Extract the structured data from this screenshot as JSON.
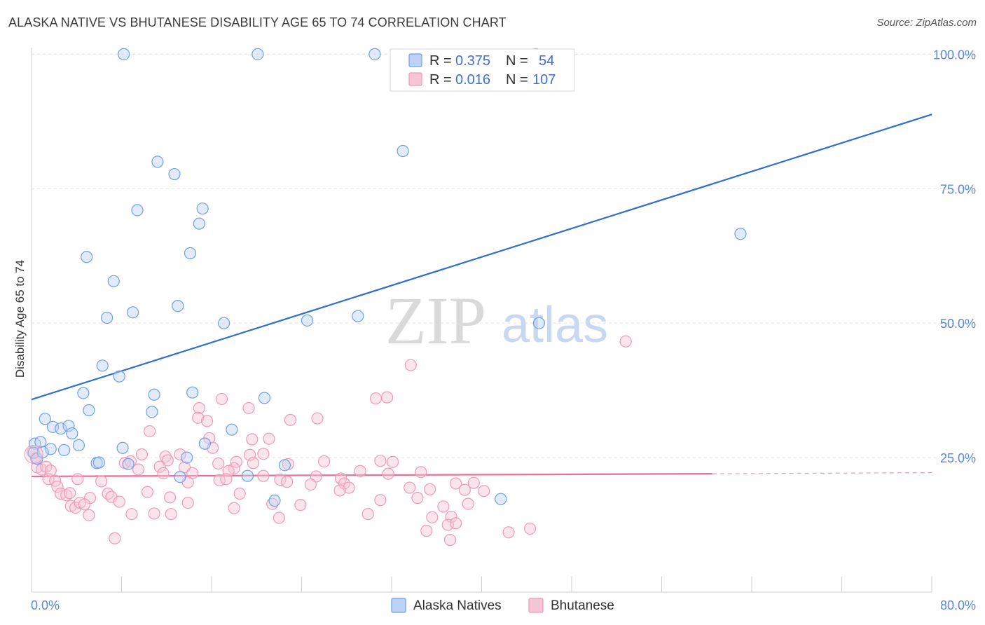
{
  "title": "ALASKA NATIVE VS BHUTANESE DISABILITY AGE 65 TO 74 CORRELATION CHART",
  "source": "Source: ZipAtlas.com",
  "colors": {
    "blue": "#6f9fe8",
    "blue_fill": "#bcd3f5",
    "blue_line": "#2e6fd0",
    "pink": "#ee9ab5",
    "pink_fill": "#f7c6d6",
    "pink_line": "#e8709a",
    "tick_text": "#5b86d6",
    "grid": "#e2e2e2"
  },
  "legend": {
    "r_label": "R =",
    "n_label": "N =",
    "series": [
      {
        "r": "0.375",
        "n": "54"
      },
      {
        "r": "0.016",
        "n": "107"
      }
    ]
  },
  "watermark": {
    "zip": "ZIP",
    "atlas": "atlas"
  },
  "chart_data": {
    "type": "scatter",
    "title": "ALASKA NATIVE VS BHUTANESE DISABILITY AGE 65 TO 74 CORRELATION CHART",
    "xlabel": "",
    "ylabel": "Disability Age 65 to 74",
    "xlim": [
      0,
      80
    ],
    "ylim": [
      0,
      102
    ],
    "x_tick_labels": [
      "0.0%",
      "80.0%"
    ],
    "y_ticks": [
      25,
      50,
      75,
      100
    ],
    "y_tick_labels": [
      "25.0%",
      "50.0%",
      "75.0%",
      "100.0%"
    ],
    "grid": true,
    "legend_position": "top-center",
    "series": [
      {
        "name": "Alaska Natives",
        "color": "#6f9fe8",
        "trend": {
          "x": [
            0,
            80
          ],
          "y": [
            35.8,
            88.8
          ]
        },
        "points": [
          [
            8.2,
            100
          ],
          [
            20.1,
            100
          ],
          [
            30.5,
            100
          ],
          [
            44.8,
            100
          ],
          [
            33.0,
            82.0
          ],
          [
            11.2,
            80.0
          ],
          [
            12.7,
            77.7
          ],
          [
            9.4,
            71.0
          ],
          [
            15.2,
            71.3
          ],
          [
            14.9,
            68.5
          ],
          [
            14.1,
            63.0
          ],
          [
            4.9,
            62.3
          ],
          [
            7.3,
            57.8
          ],
          [
            9.0,
            52.0
          ],
          [
            13.0,
            53.2
          ],
          [
            6.7,
            51.0
          ],
          [
            17.1,
            50.0
          ],
          [
            24.5,
            50.5
          ],
          [
            29.0,
            51.3
          ],
          [
            45.1,
            50.0
          ],
          [
            63.0,
            66.6
          ],
          [
            6.3,
            42.1
          ],
          [
            7.8,
            40.1
          ],
          [
            4.6,
            37.0
          ],
          [
            10.9,
            36.7
          ],
          [
            14.3,
            37.1
          ],
          [
            20.7,
            36.1
          ],
          [
            5.1,
            33.8
          ],
          [
            10.7,
            33.5
          ],
          [
            1.2,
            32.2
          ],
          [
            1.9,
            30.7
          ],
          [
            2.6,
            30.4
          ],
          [
            3.3,
            30.9
          ],
          [
            3.6,
            29.5
          ],
          [
            17.8,
            30.2
          ],
          [
            0.3,
            27.6
          ],
          [
            0.8,
            27.9
          ],
          [
            1.7,
            26.6
          ],
          [
            2.9,
            26.4
          ],
          [
            4.2,
            27.3
          ],
          [
            8.1,
            26.8
          ],
          [
            15.4,
            27.6
          ],
          [
            5.8,
            24.0
          ],
          [
            6.0,
            24.1
          ],
          [
            8.6,
            23.8
          ],
          [
            13.8,
            25.0
          ],
          [
            13.2,
            21.4
          ],
          [
            19.2,
            21.6
          ],
          [
            22.5,
            23.6
          ],
          [
            21.6,
            17.0
          ],
          [
            41.7,
            17.3
          ],
          [
            0.2,
            25.9
          ],
          [
            0.5,
            24.8
          ],
          [
            1.0,
            26.0
          ]
        ]
      },
      {
        "name": "Bhutanese",
        "color": "#ee9ab5",
        "trend": {
          "x": [
            0,
            60.5
          ],
          "y": [
            21.5,
            22.0
          ]
        },
        "trend_dashed": {
          "x": [
            60.5,
            80
          ],
          "y": [
            22.0,
            22.2
          ]
        },
        "points": [
          [
            52.8,
            46.6
          ],
          [
            33.7,
            42.2
          ],
          [
            30.6,
            36.0
          ],
          [
            31.6,
            36.2
          ],
          [
            16.9,
            35.9
          ],
          [
            19.3,
            34.2
          ],
          [
            14.9,
            34.2
          ],
          [
            14.8,
            32.4
          ],
          [
            23.0,
            32.0
          ],
          [
            25.4,
            32.3
          ],
          [
            15.6,
            31.8
          ],
          [
            10.5,
            29.9
          ],
          [
            15.8,
            28.6
          ],
          [
            19.6,
            28.4
          ],
          [
            21.1,
            28.5
          ],
          [
            9.8,
            25.6
          ],
          [
            11.9,
            25.2
          ],
          [
            13.2,
            25.6
          ],
          [
            16.1,
            26.8
          ],
          [
            18.2,
            24.2
          ],
          [
            19.4,
            25.5
          ],
          [
            20.6,
            25.7
          ],
          [
            26.0,
            24.3
          ],
          [
            31.0,
            24.4
          ],
          [
            32.1,
            24.2
          ],
          [
            8.3,
            24.0
          ],
          [
            8.8,
            24.3
          ],
          [
            11.4,
            23.3
          ],
          [
            12.1,
            24.5
          ],
          [
            13.6,
            23.2
          ],
          [
            16.6,
            23.9
          ],
          [
            18.0,
            23.0
          ],
          [
            19.7,
            24.0
          ],
          [
            22.8,
            23.8
          ],
          [
            9.5,
            22.8
          ],
          [
            11.7,
            22.1
          ],
          [
            14.3,
            22.1
          ],
          [
            17.5,
            22.5
          ],
          [
            20.6,
            21.6
          ],
          [
            25.3,
            21.5
          ],
          [
            27.5,
            21.1
          ],
          [
            29.2,
            22.5
          ],
          [
            31.7,
            22.0
          ],
          [
            34.6,
            22.3
          ],
          [
            0.5,
            23.2
          ],
          [
            0.9,
            22.8
          ],
          [
            1.3,
            23.3
          ],
          [
            1.7,
            22.6
          ],
          [
            1.5,
            21.0
          ],
          [
            2.1,
            20.7
          ],
          [
            2.3,
            19.6
          ],
          [
            4.1,
            21.0
          ],
          [
            6.2,
            20.6
          ],
          [
            13.9,
            20.4
          ],
          [
            16.7,
            20.8
          ],
          [
            17.3,
            21.0
          ],
          [
            22.1,
            20.9
          ],
          [
            22.7,
            20.5
          ],
          [
            24.8,
            20.0
          ],
          [
            27.8,
            20.2
          ],
          [
            28.2,
            19.4
          ],
          [
            27.4,
            18.9
          ],
          [
            33.6,
            19.4
          ],
          [
            35.4,
            19.1
          ],
          [
            37.7,
            20.2
          ],
          [
            39.3,
            20.3
          ],
          [
            38.5,
            19.0
          ],
          [
            40.2,
            18.8
          ],
          [
            2.6,
            18.3
          ],
          [
            3.1,
            18.0
          ],
          [
            3.4,
            18.4
          ],
          [
            5.2,
            17.5
          ],
          [
            6.8,
            18.3
          ],
          [
            7.1,
            17.7
          ],
          [
            10.3,
            18.6
          ],
          [
            12.3,
            17.6
          ],
          [
            18.5,
            18.3
          ],
          [
            21.4,
            16.4
          ],
          [
            23.9,
            16.2
          ],
          [
            31.0,
            17.1
          ],
          [
            34.3,
            17.5
          ],
          [
            36.6,
            15.9
          ],
          [
            38.8,
            16.4
          ],
          [
            3.5,
            16.0
          ],
          [
            3.9,
            15.7
          ],
          [
            4.3,
            16.6
          ],
          [
            4.7,
            16.3
          ],
          [
            7.8,
            16.8
          ],
          [
            13.9,
            16.6
          ],
          [
            18.0,
            15.6
          ],
          [
            5.1,
            14.3
          ],
          [
            8.9,
            14.5
          ],
          [
            10.9,
            14.6
          ],
          [
            12.4,
            14.5
          ],
          [
            22.0,
            13.8
          ],
          [
            29.9,
            14.5
          ],
          [
            35.6,
            13.9
          ],
          [
            37.3,
            14.0
          ],
          [
            37.0,
            12.5
          ],
          [
            37.7,
            12.8
          ],
          [
            35.1,
            11.4
          ],
          [
            42.4,
            11.1
          ],
          [
            44.3,
            11.8
          ],
          [
            7.4,
            10.0
          ],
          [
            37.2,
            9.7
          ],
          [
            0.1,
            26.0
          ],
          [
            0.4,
            24.9
          ]
        ]
      }
    ]
  },
  "bottom_legend": {
    "items": [
      {
        "label": "Alaska Natives"
      },
      {
        "label": "Bhutanese"
      }
    ]
  }
}
